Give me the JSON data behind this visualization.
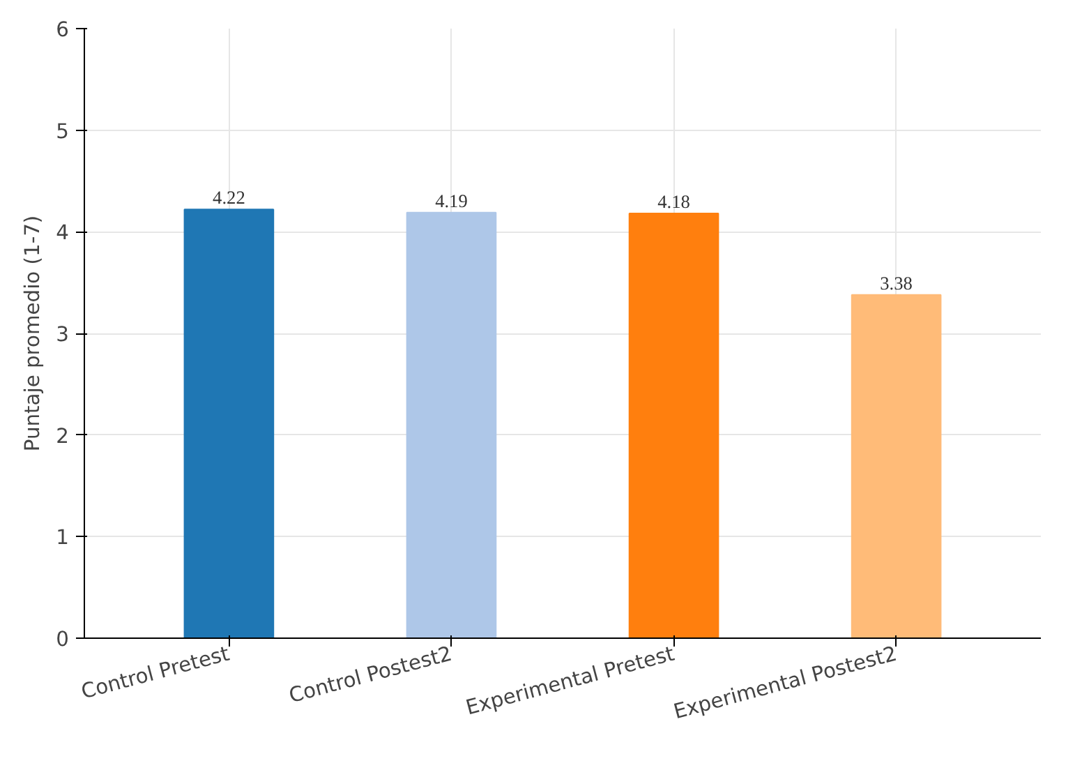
{
  "chart_data": {
    "type": "bar",
    "ylabel": "Puntaje promedio (1-7)",
    "categories": [
      "Control Pretest",
      "Control Postest2",
      "Experimental Pretest",
      "Experimental Postest2"
    ],
    "values": [
      4.22,
      4.19,
      4.18,
      3.38
    ],
    "colors": [
      "#1f77b4",
      "#aec7e8",
      "#ff7f0e",
      "#ffbb78"
    ],
    "ylim": [
      0,
      6
    ],
    "yticks": [
      0,
      1,
      2,
      3,
      4,
      5,
      6
    ],
    "grid": true,
    "data_labels": true
  }
}
